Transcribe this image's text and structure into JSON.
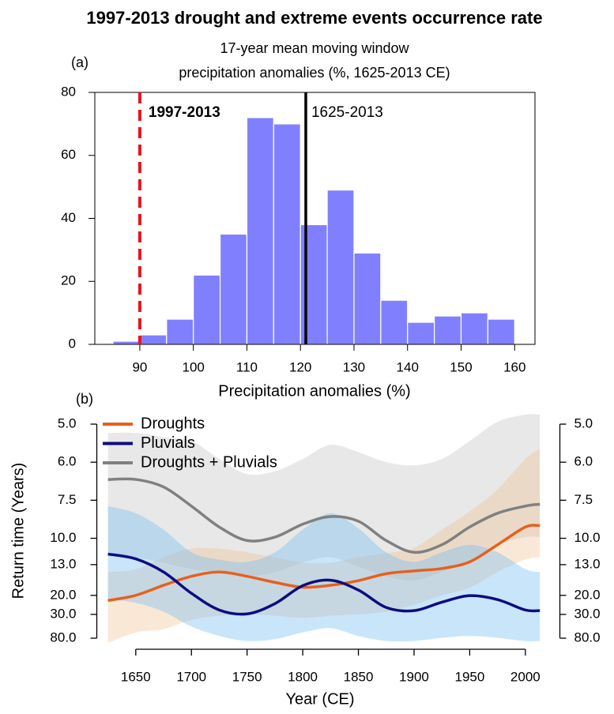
{
  "title": "1997-2013 drought and extreme events occurrence rate",
  "chart_data": [
    {
      "type": "histogram",
      "panel": "(a)",
      "subtitle": [
        "17-year mean moving window",
        "precipitation anomalies (%, 1625-2013 CE)"
      ],
      "xlabel": "Precipitation anomalies (%)",
      "bins": [
        85,
        90,
        95,
        100,
        105,
        110,
        115,
        120,
        125,
        130,
        135,
        140,
        145,
        150,
        155,
        160
      ],
      "counts": [
        1,
        3,
        8,
        22,
        35,
        72,
        70,
        38,
        49,
        29,
        14,
        7,
        9,
        10,
        8
      ],
      "color": "#8080ff",
      "xlim": [
        81.6,
        163.8
      ],
      "ylim": [
        0,
        80
      ],
      "xticks": [
        90,
        100,
        110,
        120,
        130,
        140,
        150,
        160
      ],
      "yticks": [
        0,
        20,
        40,
        60,
        80
      ],
      "vlines": [
        {
          "x": 90,
          "label": "1997-2013",
          "color": "#e8141c",
          "style": "dashed",
          "bold": true
        },
        {
          "x": 121,
          "label": "1625-2013",
          "color": "#000000",
          "style": "solid",
          "bold": false
        }
      ]
    },
    {
      "type": "line",
      "panel": "(b)",
      "ylabel": "Return time (Years)",
      "xlabel": "Year (CE)",
      "yscale": "reciprocal",
      "legend": "upper left",
      "right_axis": true,
      "x": [
        1625,
        1650,
        1675,
        1700,
        1725,
        1750,
        1775,
        1800,
        1825,
        1850,
        1875,
        1900,
        1925,
        1950,
        1975,
        2000,
        2013
      ],
      "series": [
        {
          "name": "Droughts",
          "color": "#e8601c",
          "band_color": "rgba(240,190,140,0.35)",
          "values": [
            22,
            20,
            17,
            15,
            14.2,
            15,
            16.3,
            17.5,
            17,
            15.9,
            14.5,
            14,
            13.6,
            12.6,
            10.6,
            9.1,
            9.0
          ],
          "band": {
            "min": [
              14.2,
              13.7,
              12,
              11,
              11,
              11.4,
              12,
              12.7,
              12.7,
              12,
              11.5,
              10.9,
              9.3,
              8.1,
              7.0,
              5.9,
              5.6
            ],
            "max": [
              120,
              57,
              49,
              35,
              31,
              30,
              31,
              33,
              31,
              30,
              28,
              24,
              20,
              17.6,
              14.2,
              12.3,
              12
            ]
          }
        },
        {
          "name": "Pluvials",
          "color": "#0d0d80",
          "band_color": "rgba(120,190,240,0.4)",
          "values": [
            11.6,
            12.2,
            14.2,
            19.3,
            26.9,
            29.6,
            23.4,
            17.1,
            15.8,
            18.3,
            25.4,
            27.3,
            22.7,
            20.1,
            21.6,
            26.9,
            27.3
          ],
          "band": {
            "min": [
              7.8,
              8.2,
              9.3,
              11.4,
              12.3,
              12.6,
              11.4,
              9.3,
              8.2,
              9.2,
              11.4,
              12.6,
              11.4,
              10.6,
              11.4,
              13.7,
              14.2
            ],
            "max": [
              21.6,
              23,
              28,
              44,
              69,
              100,
              86,
              57,
              47,
              69,
              100,
              100,
              78,
              69,
              78,
              100,
              100
            ]
          }
        },
        {
          "name": "Droughts + Pluvials",
          "color": "#808080",
          "band_color": "rgba(205,205,205,0.45)",
          "values": [
            6.6,
            6.6,
            6.9,
            7.8,
            9.1,
            10.2,
            9.9,
            8.9,
            8.4,
            8.7,
            10.2,
            11.4,
            10.6,
            9.1,
            8.2,
            7.8,
            7.7
          ],
          "band": {
            "min": [
              5.2,
              5.2,
              5.3,
              5.4,
              5.9,
              6.4,
              6.3,
              5.9,
              5.5,
              5.7,
              6.0,
              6.1,
              5.9,
              5.4,
              4.95,
              4.8,
              4.8
            ],
            "max": [
              11.4,
              12,
              12.7,
              13.7,
              14.2,
              15,
              14.2,
              12.7,
              12,
              13.3,
              15,
              15.8,
              14.2,
              12.5,
              10.6,
              9.9,
              9.9
            ]
          }
        }
      ],
      "xlim": [
        1615,
        2031
      ],
      "ylim": [
        80,
        5
      ],
      "xticks": [
        1650,
        1700,
        1750,
        1800,
        1850,
        1900,
        1950,
        2000
      ],
      "yticks": [
        {
          "value": 5,
          "label": "5.0"
        },
        {
          "value": 6,
          "label": "6.0"
        },
        {
          "value": 7.5,
          "label": "7.5"
        },
        {
          "value": 10,
          "label": "10.0"
        },
        {
          "value": 13,
          "label": "13.0"
        },
        {
          "value": 20,
          "label": "20.0"
        },
        {
          "value": 30,
          "label": "30.0"
        },
        {
          "value": 80,
          "label": "80.0"
        }
      ]
    }
  ]
}
